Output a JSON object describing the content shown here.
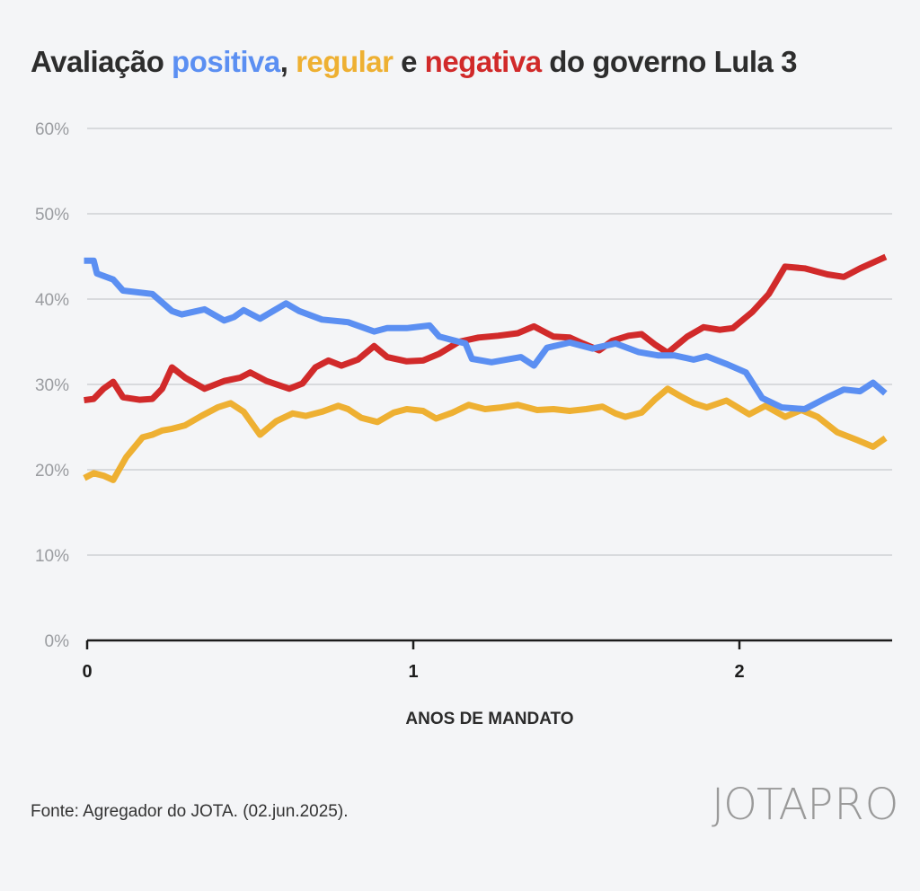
{
  "title": {
    "part1": "Avaliação ",
    "positiva": "positiva",
    "sep1": ", ",
    "regular": "regular",
    "sep2": " e ",
    "negativa": "negativa",
    "part2": " do governo Lula 3"
  },
  "source": "Fonte: Agregador do JOTA. (02.jun.2025).",
  "logo": {
    "jota": "JOTA",
    "pro": "PRO"
  },
  "colors": {
    "positiva": "#5b8ff2",
    "regular": "#eeb032",
    "negativa": "#d12a2a",
    "grid": "#d8dadd",
    "tick": "#9a9ca0"
  },
  "chart_data": {
    "type": "line",
    "xlabel": "ANOS DE MANDATO",
    "xlim": [
      0,
      2.45
    ],
    "ylim": [
      0,
      60
    ],
    "xticks": [
      0,
      1,
      2
    ],
    "xtick_labels": [
      "0",
      "1",
      "2"
    ],
    "yticks": [
      0,
      10,
      20,
      30,
      40,
      50,
      60
    ],
    "ytick_labels": [
      "0%",
      "10%",
      "20%",
      "30%",
      "40%",
      "50%",
      "60%"
    ],
    "grid": true,
    "series": [
      {
        "name": "positiva",
        "color": "#5b8ff2",
        "x": [
          0,
          0.02,
          0.03,
          0.08,
          0.11,
          0.2,
          0.26,
          0.29,
          0.36,
          0.42,
          0.45,
          0.48,
          0.53,
          0.61,
          0.65,
          0.72,
          0.8,
          0.88,
          0.92,
          0.98,
          1.05,
          1.08,
          1.16,
          1.18,
          1.24,
          1.33,
          1.37,
          1.41,
          1.48,
          1.55,
          1.62,
          1.69,
          1.75,
          1.8,
          1.86,
          1.9,
          1.96,
          2.02,
          2.07,
          2.13,
          2.2,
          2.27,
          2.32,
          2.37,
          2.41,
          2.44
        ],
        "values": [
          44.5,
          44.5,
          43,
          42.3,
          41,
          40.6,
          38.6,
          38.2,
          38.8,
          37.5,
          37.9,
          38.7,
          37.7,
          39.5,
          38.6,
          37.6,
          37.3,
          36.2,
          36.6,
          36.6,
          36.9,
          35.6,
          34.8,
          33,
          32.6,
          33.2,
          32.2,
          34.3,
          34.9,
          34.2,
          34.8,
          33.8,
          33.4,
          33.4,
          32.9,
          33.3,
          32.4,
          31.4,
          28.4,
          27.3,
          27.1,
          28.5,
          29.4,
          29.2,
          30.2,
          29.2
        ]
      },
      {
        "name": "regular",
        "color": "#eeb032",
        "x": [
          0,
          0.02,
          0.05,
          0.08,
          0.12,
          0.17,
          0.2,
          0.23,
          0.26,
          0.3,
          0.35,
          0.4,
          0.44,
          0.48,
          0.53,
          0.58,
          0.63,
          0.67,
          0.72,
          0.77,
          0.8,
          0.84,
          0.89,
          0.94,
          0.98,
          1.03,
          1.07,
          1.12,
          1.17,
          1.22,
          1.27,
          1.32,
          1.38,
          1.43,
          1.48,
          1.53,
          1.58,
          1.62,
          1.65,
          1.7,
          1.74,
          1.78,
          1.82,
          1.86,
          1.9,
          1.96,
          2.03,
          2.08,
          2.14,
          2.19,
          2.24,
          2.3,
          2.36,
          2.41,
          2.44
        ],
        "values": [
          19.2,
          19.6,
          19.3,
          18.8,
          21.5,
          23.8,
          24.1,
          24.6,
          24.8,
          25.2,
          26.3,
          27.3,
          27.8,
          26.8,
          24.1,
          25.7,
          26.6,
          26.3,
          26.8,
          27.5,
          27.1,
          26.1,
          25.6,
          26.7,
          27.1,
          26.9,
          26,
          26.7,
          27.6,
          27.1,
          27.3,
          27.6,
          27,
          27.1,
          26.9,
          27.1,
          27.4,
          26.6,
          26.2,
          26.7,
          28.2,
          29.5,
          28.6,
          27.8,
          27.3,
          28.1,
          26.5,
          27.5,
          26.2,
          27,
          26.2,
          24.4,
          23.5,
          22.7,
          23.5
        ]
      },
      {
        "name": "negativa",
        "color": "#d12a2a",
        "x": [
          0,
          0.02,
          0.05,
          0.08,
          0.11,
          0.16,
          0.2,
          0.23,
          0.26,
          0.3,
          0.36,
          0.42,
          0.47,
          0.5,
          0.55,
          0.62,
          0.66,
          0.7,
          0.74,
          0.78,
          0.83,
          0.88,
          0.92,
          0.98,
          1.03,
          1.08,
          1.14,
          1.2,
          1.26,
          1.32,
          1.37,
          1.4,
          1.43,
          1.48,
          1.52,
          1.57,
          1.61,
          1.66,
          1.7,
          1.74,
          1.78,
          1.84,
          1.89,
          1.94,
          1.98,
          2.04,
          2.09,
          2.14,
          2.2,
          2.27,
          2.32,
          2.37,
          2.44
        ],
        "values": [
          28.2,
          28.3,
          29.5,
          30.3,
          28.5,
          28.2,
          28.3,
          29.5,
          32,
          30.8,
          29.5,
          30.4,
          30.8,
          31.4,
          30.4,
          29.5,
          30.1,
          32,
          32.8,
          32.2,
          32.9,
          34.5,
          33.2,
          32.7,
          32.8,
          33.6,
          35,
          35.5,
          35.7,
          36,
          36.8,
          36.2,
          35.6,
          35.5,
          34.8,
          34,
          35.1,
          35.7,
          35.9,
          34.7,
          33.7,
          35.6,
          36.7,
          36.4,
          36.6,
          38.5,
          40.6,
          43.8,
          43.6,
          42.9,
          42.6,
          43.6,
          44.8
        ]
      }
    ]
  }
}
